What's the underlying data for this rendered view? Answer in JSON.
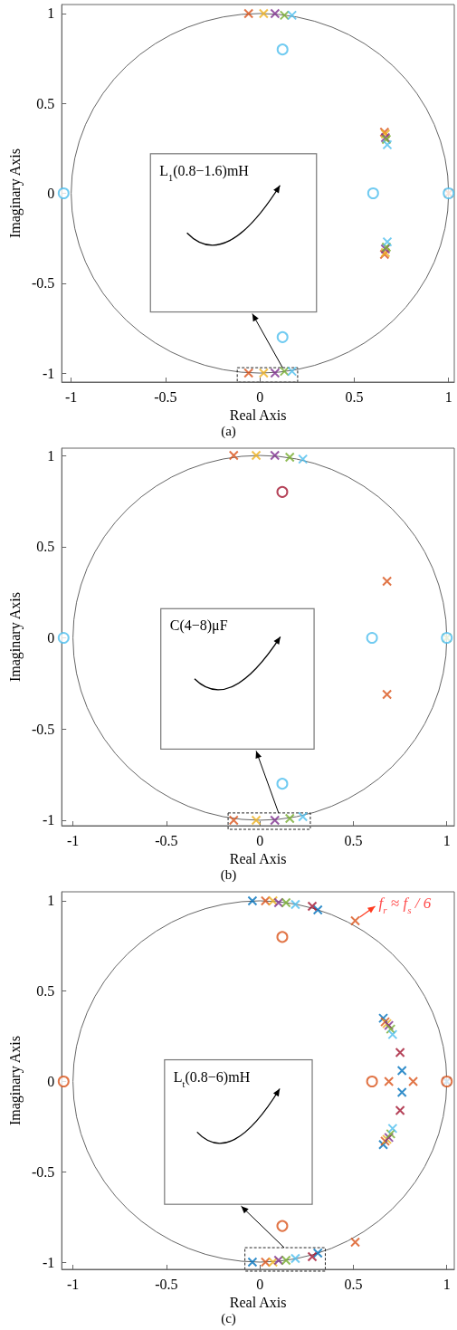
{
  "chart_data": [
    {
      "type": "scatter",
      "title": "(a)",
      "xlabel": "Real Axis",
      "ylabel": "Imaginary Axis",
      "xlim": [
        -1.05,
        1.03
      ],
      "ylim": [
        -1.05,
        1.05
      ],
      "xticks": [
        -1,
        -0.5,
        0,
        0.5,
        1
      ],
      "yticks": [
        -1,
        -0.5,
        0,
        0.5,
        1
      ],
      "marker": "cross",
      "annotations": [
        "L$_{1}$(0.8−1.6)mH"
      ],
      "series": [
        {
          "color": "#d95319",
          "x": [
            -0.06,
            -0.06,
            0.66,
            0.66,
            1.0
          ],
          "values": [
            1.0,
            -1.0,
            0.34,
            -0.34,
            0
          ]
        },
        {
          "color": "#edb120",
          "x": [
            0.02,
            0.02,
            0.665,
            0.665
          ],
          "values": [
            1.0,
            -1.0,
            0.33,
            -0.33
          ]
        },
        {
          "color": "#7e2f8e",
          "x": [
            0.08,
            0.08,
            0.665,
            0.665
          ],
          "values": [
            1.0,
            -1.0,
            0.31,
            -0.31
          ]
        },
        {
          "color": "#77ac30",
          "x": [
            0.13,
            0.13,
            0.67,
            0.67
          ],
          "values": [
            0.99,
            -0.99,
            0.3,
            -0.3
          ]
        },
        {
          "color": "#4dbeee",
          "x": [
            0.17,
            0.17,
            0.675,
            0.675
          ],
          "values": [
            0.99,
            -0.99,
            0.27,
            -0.27
          ]
        },
        {
          "color": "#4dbeee",
          "marker": "circle",
          "x": [
            0.12,
            0.12,
            0.6,
            -1.04,
            1.0
          ],
          "values": [
            0.8,
            -0.8,
            0,
            0,
            0
          ]
        }
      ]
    },
    {
      "type": "scatter",
      "title": "(b)",
      "xlabel": "Real Axis",
      "ylabel": "Imaginary Axis",
      "xlim": [
        -1.06,
        1.04
      ],
      "ylim": [
        -1.03,
        1.04
      ],
      "xticks": [
        -1,
        -0.5,
        0,
        0.5,
        1
      ],
      "yticks": [
        -1,
        -0.5,
        0,
        0.5,
        1
      ],
      "marker": "cross",
      "annotations": [
        "C(4−8)μF"
      ],
      "series": [
        {
          "color": "#d95319",
          "x": [
            -0.14,
            -0.14,
            0.68,
            0.68
          ],
          "values": [
            1.0,
            -1.0,
            0.31,
            -0.31
          ]
        },
        {
          "color": "#edb120",
          "x": [
            -0.02,
            -0.02
          ],
          "values": [
            1.0,
            -1.0
          ]
        },
        {
          "color": "#7e2f8e",
          "x": [
            0.08,
            0.08
          ],
          "values": [
            1.0,
            -1.0
          ]
        },
        {
          "color": "#77ac30",
          "x": [
            0.16,
            0.16,
            1.0
          ],
          "values": [
            0.99,
            -0.99,
            0
          ]
        },
        {
          "color": "#4dbeee",
          "x": [
            0.23,
            0.23
          ],
          "values": [
            0.98,
            -0.98
          ]
        },
        {
          "color": "#4dbeee",
          "marker": "circle",
          "x": [
            0.12,
            0.6,
            -1.05,
            1.0
          ],
          "values": [
            -0.8,
            0,
            0,
            0
          ]
        },
        {
          "color": "#a2142f",
          "marker": "circle",
          "x": [
            0.12
          ],
          "values": [
            0.8
          ]
        }
      ]
    },
    {
      "type": "scatter",
      "title": "(c)",
      "xlabel": "Real Axis",
      "ylabel": "Imaginary Axis",
      "xlim": [
        -1.06,
        1.04
      ],
      "ylim": [
        -1.04,
        1.05
      ],
      "xticks": [
        -1,
        -0.5,
        0,
        0.5,
        1
      ],
      "yticks": [
        -1,
        -0.5,
        0,
        0.5,
        1
      ],
      "marker": "cross",
      "annotations": [
        "L$_{t}$(0.8−6)mH",
        {
          "text": "f$_{r}$ ≈ f$_{s}$ / 6",
          "x": 0.51,
          "y": 0.89
        }
      ],
      "series": [
        {
          "color": "#0072bd",
          "x": [
            -0.04,
            -0.04,
            0.31,
            0.31,
            0.66,
            0.66,
            0.76,
            0.76,
            1.0
          ],
          "values": [
            1.0,
            -1.0,
            0.95,
            -0.95,
            0.35,
            -0.35,
            0.06,
            -0.06,
            0
          ]
        },
        {
          "color": "#d95319",
          "x": [
            0.03,
            0.03,
            0.51,
            0.51,
            0.67,
            0.67,
            0.69,
            0.82
          ],
          "values": [
            1.0,
            -1.0,
            0.89,
            -0.89,
            0.33,
            -0.33,
            0,
            0
          ]
        },
        {
          "color": "#edb120",
          "x": [
            0.07,
            0.07,
            0.68,
            0.68
          ],
          "values": [
            1.0,
            -1.0,
            0.32,
            -0.32
          ]
        },
        {
          "color": "#7e2f8e",
          "x": [
            0.1,
            0.1,
            0.69,
            0.69
          ],
          "values": [
            0.99,
            -0.99,
            0.31,
            -0.31
          ]
        },
        {
          "color": "#77ac30",
          "x": [
            0.14,
            0.14,
            0.7,
            0.7
          ],
          "values": [
            0.99,
            -0.99,
            0.29,
            -0.29
          ]
        },
        {
          "color": "#4dbeee",
          "x": [
            0.19,
            0.19,
            0.71,
            0.71
          ],
          "values": [
            0.98,
            -0.98,
            0.26,
            -0.26
          ]
        },
        {
          "color": "#a2142f",
          "x": [
            0.28,
            0.28,
            0.75,
            0.75
          ],
          "values": [
            0.97,
            -0.97,
            0.16,
            -0.16
          ]
        },
        {
          "color": "#d95319",
          "marker": "circle",
          "x": [
            0.12,
            0.12,
            0.6,
            -1.05,
            1.0
          ],
          "values": [
            0.8,
            -0.8,
            0,
            0,
            0
          ]
        }
      ]
    }
  ]
}
